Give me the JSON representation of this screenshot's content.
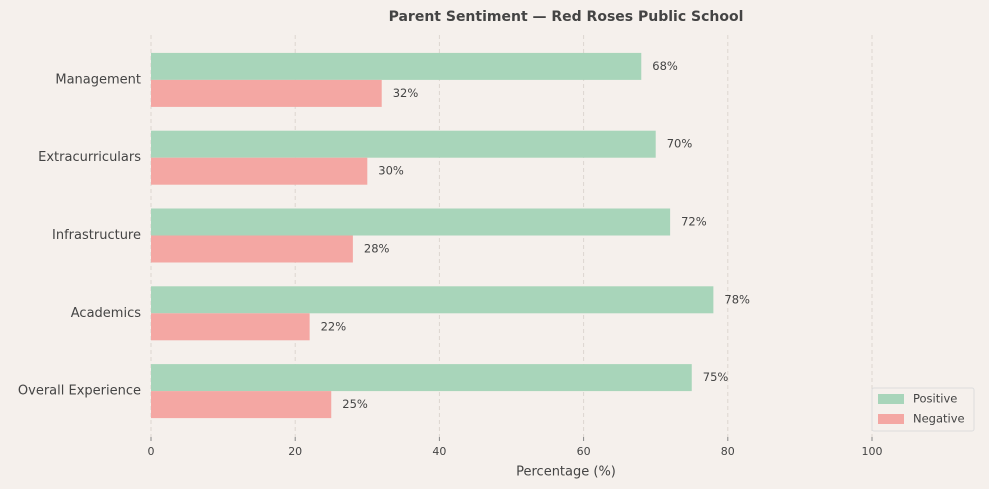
{
  "chart_data": {
    "type": "hbar",
    "title": "Parent Sentiment — Red Roses Public School",
    "categories": [
      "Management",
      "Extracurriculars",
      "Infrastructure",
      "Academics",
      "Overall Experience"
    ],
    "series": [
      {
        "name": "Positive",
        "color": "#a8d5ba",
        "values": [
          68,
          70,
          72,
          78,
          75
        ],
        "value_labels": [
          "68%",
          "70%",
          "72%",
          "78%",
          "75%"
        ]
      },
      {
        "name": "Negative",
        "color": "#f4a7a3",
        "values": [
          32,
          30,
          28,
          22,
          25
        ],
        "value_labels": [
          "32%",
          "30%",
          "28%",
          "22%",
          "25%"
        ]
      }
    ],
    "xlabel": "Percentage (%)",
    "xlim": [
      0,
      115
    ],
    "xticks": [
      0,
      20,
      40,
      60,
      80,
      100
    ],
    "grid": true,
    "legend": "lower right"
  }
}
